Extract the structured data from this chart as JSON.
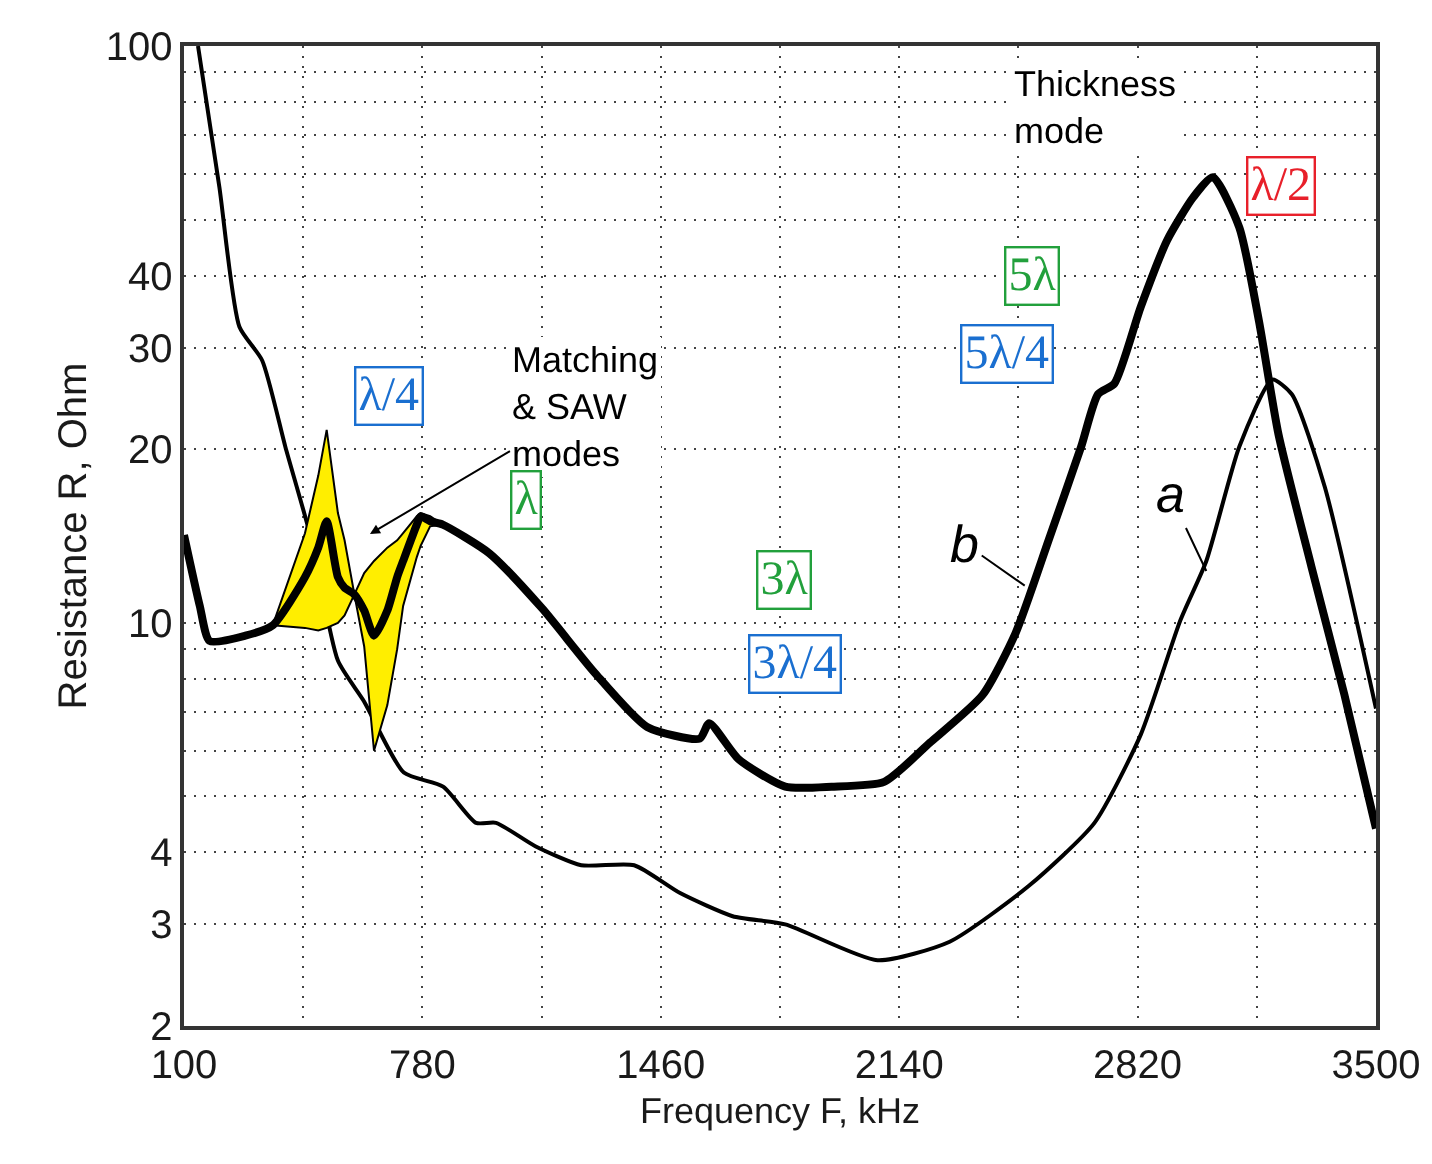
{
  "chart_data": {
    "type": "line",
    "xlabel": "Frequency F, kHz",
    "ylabel": "Resistance R, Ohm",
    "log": "y",
    "grid": true,
    "marker": "none",
    "line_style": "solid",
    "xlim": [
      100,
      3500
    ],
    "xticks": [
      100,
      {
        "value": 440,
        "label": null
      },
      780,
      {
        "value": 1120,
        "label": null
      },
      1460,
      {
        "value": 1800,
        "label": null
      },
      2140,
      {
        "value": 2480,
        "label": null
      },
      2820,
      {
        "value": 3160,
        "label": null
      },
      3500
    ],
    "ylim": [
      2,
      100
    ],
    "yticks": [
      2,
      3,
      4,
      {
        "value": 5,
        "label": null
      },
      {
        "value": 6,
        "label": null
      },
      {
        "value": 7,
        "label": null
      },
      {
        "value": 8,
        "label": null
      },
      {
        "value": 9,
        "label": null
      },
      10,
      20,
      30,
      40,
      {
        "value": 50,
        "label": null
      },
      {
        "value": 60,
        "label": null
      },
      {
        "value": 70,
        "label": null
      },
      {
        "value": 80,
        "label": null
      },
      {
        "value": 90,
        "label": null
      },
      100
    ],
    "series": [
      {
        "color": "#000000",
        "x": [
          140,
          201,
          258,
          323,
          389,
          464,
          539,
          614,
          727,
          839,
          933,
          990,
          1102,
          1233,
          1384,
          1515,
          1665,
          1815,
          2078,
          2284,
          2510,
          2697,
          2829,
          2942,
          3016,
          3110,
          3204,
          3260,
          3354,
          3500
        ],
        "values": [
          100,
          56.9,
          32.6,
          28.5,
          20.2,
          13.9,
          8.6,
          7.3,
          5.5,
          5.2,
          4.5,
          4.5,
          4.1,
          3.8,
          3.8,
          3.4,
          3.1,
          3.0,
          2.6,
          2.8,
          3.5,
          4.5,
          6.4,
          10.1,
          12.8,
          20.2,
          26.4,
          24.9,
          17.2,
          7.1
        ]
      },
      {
        "color": "#000000",
        "x": [
          100,
          145,
          173,
          275,
          353,
          445,
          483,
          507,
          539,
          558,
          586,
          614,
          642,
          680,
          708,
          725,
          764,
          775,
          802,
          838,
          971,
          1121,
          1271,
          1421,
          1571,
          1598,
          1682,
          1815,
          1947,
          2097,
          2228,
          2378,
          2472,
          2566,
          2659,
          2707,
          2754,
          2829,
          2904,
          2979,
          3035,
          3110,
          3166,
          3222,
          3316,
          3410,
          3500
        ],
        "values": [
          14.2,
          10.7,
          9.3,
          9.5,
          9.9,
          12,
          13.5,
          15,
          12,
          11.5,
          11.2,
          10.5,
          9.5,
          10.5,
          12,
          12.8,
          14.8,
          15.3,
          15,
          14.8,
          13.2,
          10.6,
          8.2,
          6.6,
          6.3,
          6.7,
          5.8,
          5.2,
          5.2,
          5.3,
          6.2,
          7.5,
          9.6,
          13.9,
          20.2,
          24.9,
          26,
          35.3,
          46,
          54.7,
          59.2,
          48.5,
          33.4,
          21.2,
          12.5,
          7.5,
          4.4
        ],
        "lower": [
          null,
          null,
          null,
          null,
          9.9,
          9.8,
          9.7,
          9.8,
          10.0,
          10.3,
          11.2,
          9.1,
          6.0,
          7.2,
          9.0,
          10.7,
          13.0,
          13.6,
          14.7,
          14.8,
          null,
          null,
          null,
          null,
          null,
          null,
          null,
          null,
          null,
          null,
          null,
          null,
          null,
          null,
          null,
          null,
          null,
          null,
          null,
          null,
          null,
          null,
          null,
          null,
          null,
          null,
          null
        ],
        "upper": [
          null,
          null,
          null,
          null,
          9.9,
          14.3,
          18,
          21.6,
          15.5,
          13.9,
          11.2,
          12.2,
          12.8,
          13.5,
          13.9,
          14.3,
          15.3,
          15.5,
          15.3,
          14.8,
          null,
          null,
          null,
          null,
          null,
          null,
          null,
          null,
          null,
          null,
          null,
          null,
          null,
          null,
          null,
          null,
          null,
          null,
          null,
          null,
          null,
          null,
          null,
          null,
          null,
          null,
          null
        ]
      }
    ],
    "annotations": [
      "Thickness mode",
      "λ/2",
      "5λ",
      "5λ/4",
      "3λ",
      "3λ/4",
      "λ/4",
      "Matching & SAW modes",
      "λ",
      {
        "text": "a",
        "x": 3016,
        "y": 12.3
      },
      {
        "text": "b",
        "x": 2498,
        "y": 11.6
      }
    ]
  }
}
